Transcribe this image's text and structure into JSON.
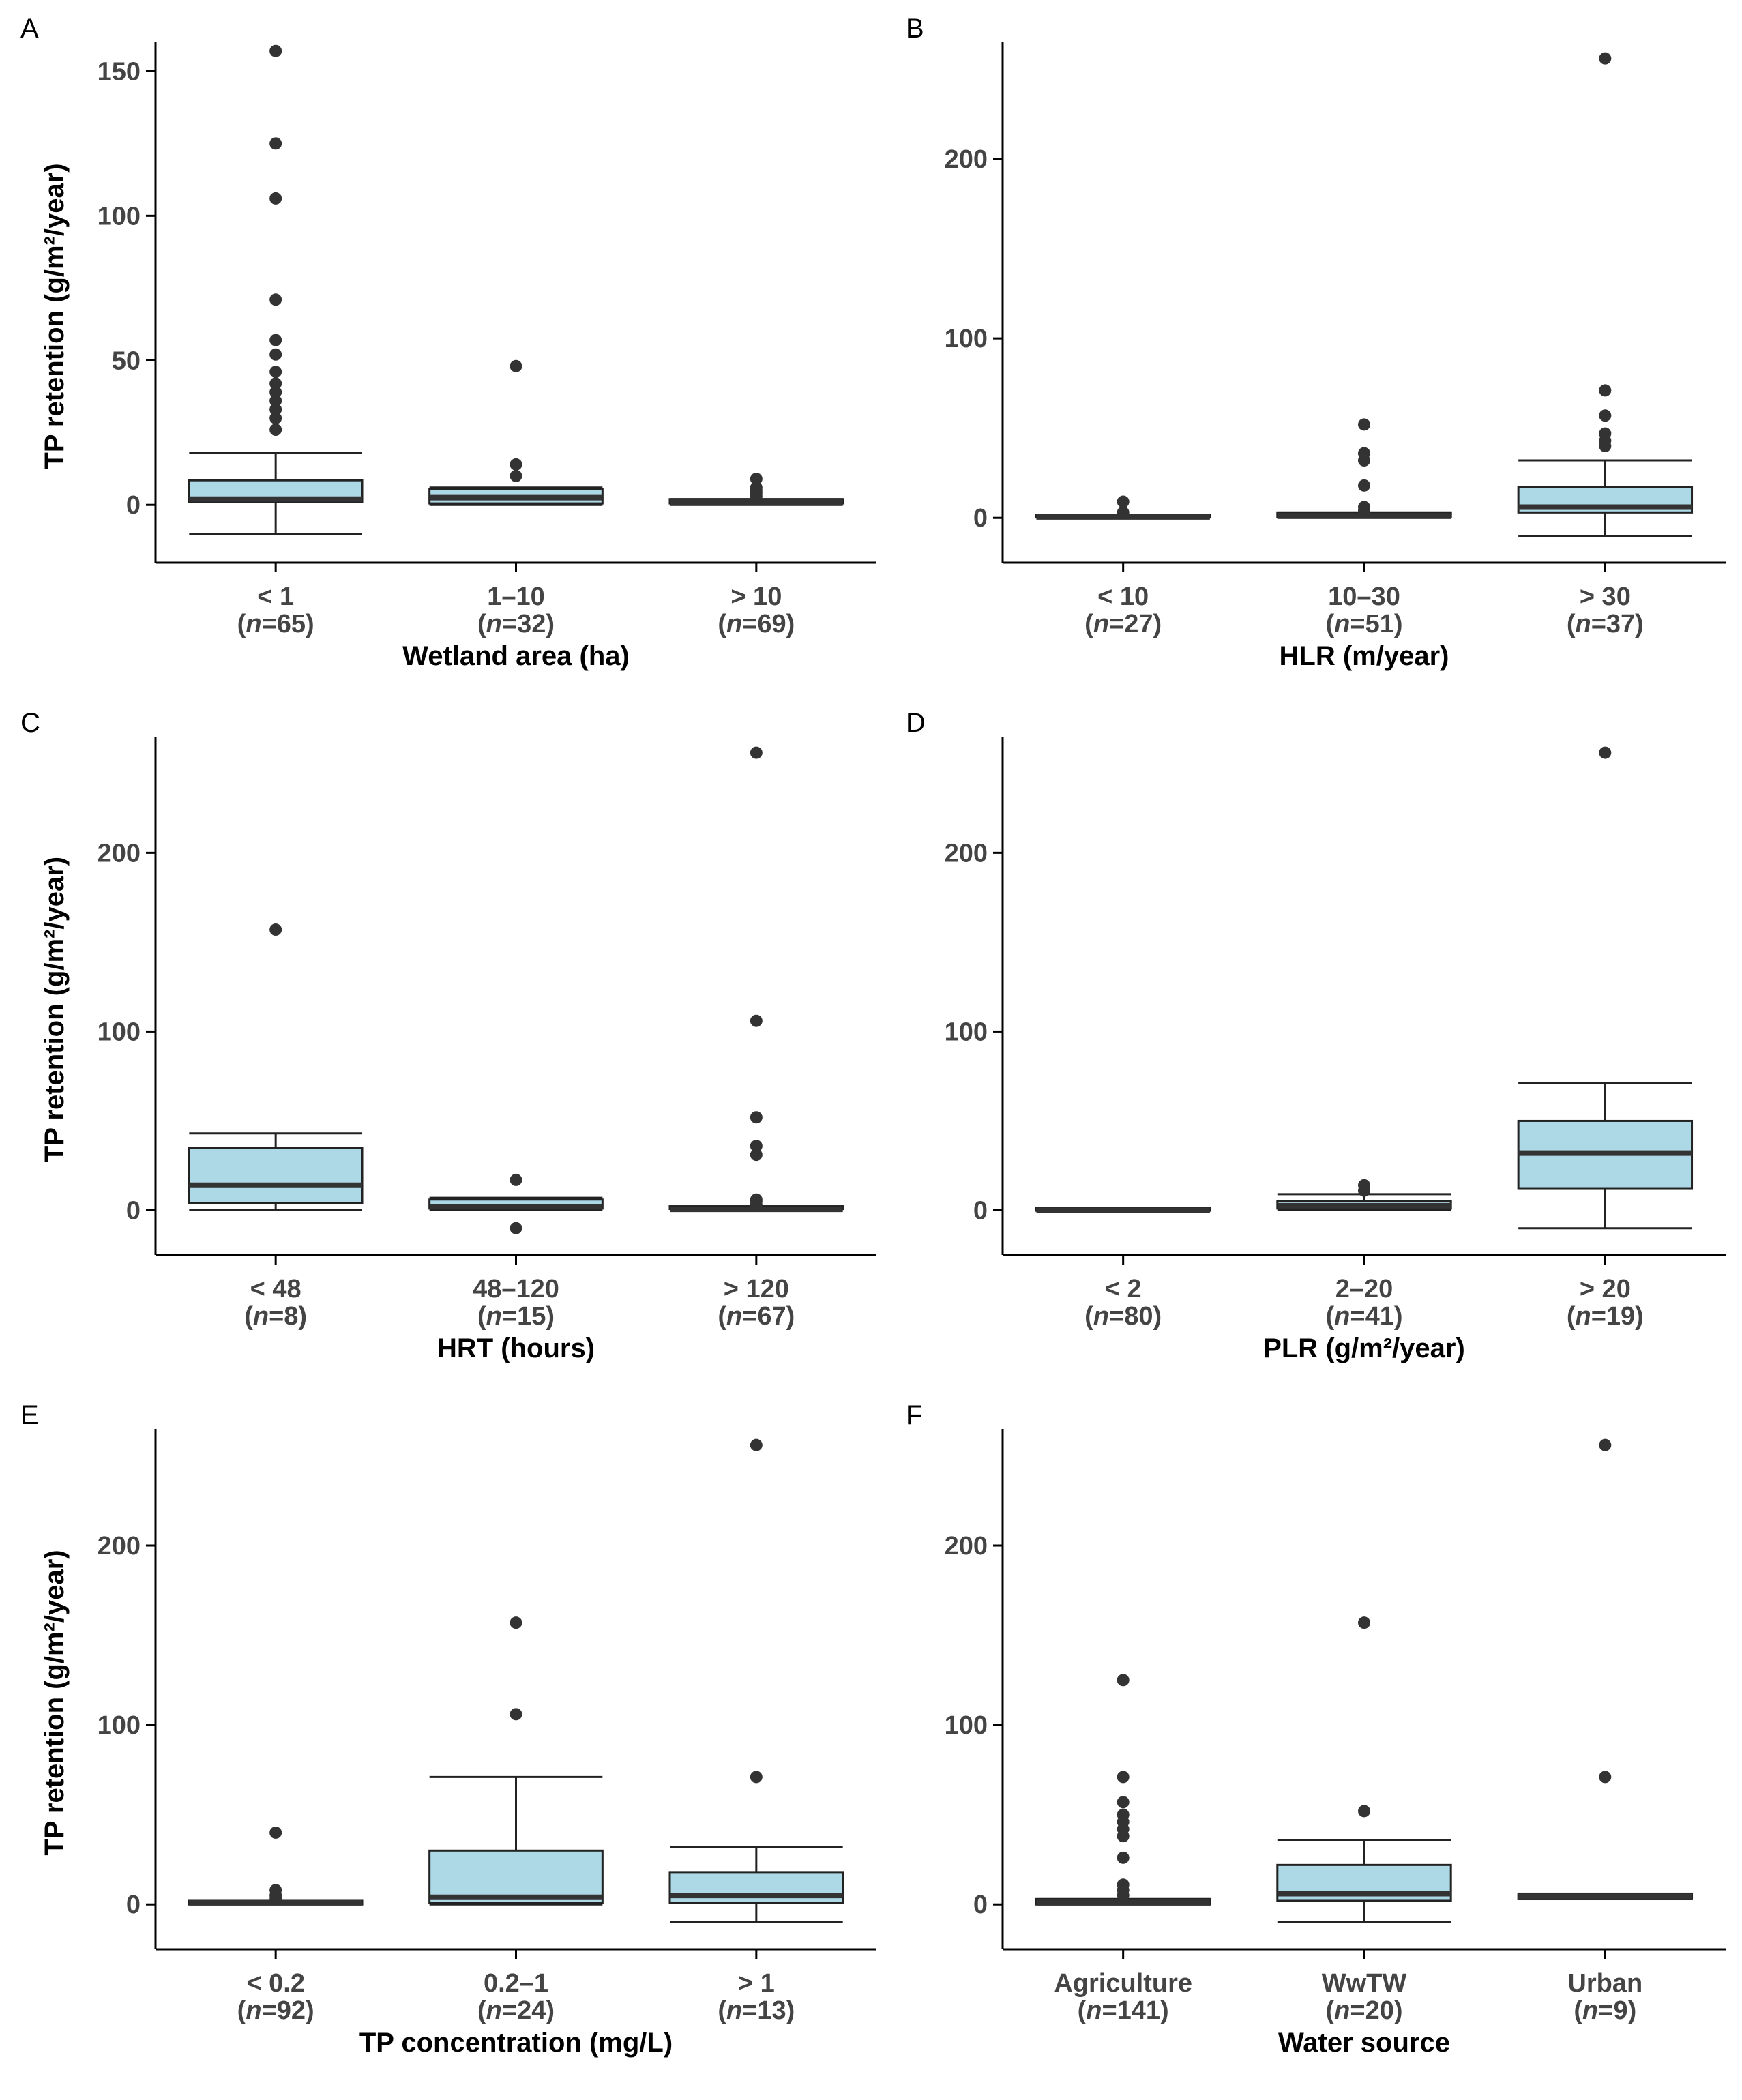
{
  "chart_data": [
    {
      "panel": "A",
      "type": "box",
      "ylabel": "TP retention (g/m²/year)",
      "xlabel": "Wetland area (ha)",
      "ylim": [
        -20,
        160
      ],
      "yticks": [
        0,
        50,
        100,
        150
      ],
      "categories": [
        {
          "label": "< 1",
          "n": "65",
          "whisker_low": -10,
          "q1": 1,
          "median": 2,
          "q3": 8.5,
          "whisker_high": 18,
          "outliers": [
            26,
            30,
            33,
            36,
            39,
            42,
            46,
            52,
            57,
            71,
            106,
            125,
            157
          ]
        },
        {
          "label": "1–10",
          "n": "32",
          "whisker_low": 0,
          "q1": 0.5,
          "median": 2.5,
          "q3": 5.5,
          "whisker_high": 6,
          "outliers": [
            10,
            14,
            48
          ]
        },
        {
          "label": "> 10",
          "n": "69",
          "whisker_low": 0,
          "q1": 0.5,
          "median": 1,
          "q3": 2,
          "whisker_high": 2,
          "outliers": [
            3,
            4,
            5,
            6,
            9
          ]
        }
      ]
    },
    {
      "panel": "B",
      "type": "box",
      "ylabel": "",
      "xlabel": "HLR (m/year)",
      "ylim": [
        -25,
        265
      ],
      "yticks": [
        0,
        100,
        200
      ],
      "categories": [
        {
          "label": "< 10",
          "n": "27",
          "whisker_low": 0,
          "q1": 0,
          "median": 0.5,
          "q3": 1,
          "whisker_high": 1,
          "outliers": [
            3,
            9
          ]
        },
        {
          "label": "10–30",
          "n": "51",
          "whisker_low": 0,
          "q1": 0.5,
          "median": 1,
          "q3": 3,
          "whisker_high": 3,
          "outliers": [
            4,
            6,
            18,
            32,
            36,
            52
          ]
        },
        {
          "label": "> 30",
          "n": "37",
          "whisker_low": -10,
          "q1": 3,
          "median": 6,
          "q3": 17,
          "whisker_high": 32,
          "outliers": [
            40,
            43,
            47,
            57,
            71,
            256
          ]
        }
      ]
    },
    {
      "panel": "C",
      "type": "box",
      "ylabel": "TP retention (g/m²/year)",
      "xlabel": "HRT (hours)",
      "ylim": [
        -25,
        265
      ],
      "yticks": [
        0,
        100,
        200
      ],
      "categories": [
        {
          "label": "< 48",
          "n": "8",
          "whisker_low": 0,
          "q1": 4,
          "median": 14,
          "q3": 35,
          "whisker_high": 43,
          "outliers": [
            157
          ]
        },
        {
          "label": "48–120",
          "n": "15",
          "whisker_low": 0,
          "q1": 1,
          "median": 2,
          "q3": 6,
          "whisker_high": 7,
          "outliers": [
            -10,
            17
          ]
        },
        {
          "label": "> 120",
          "n": "67",
          "whisker_low": 0,
          "q1": 0,
          "median": 0.5,
          "q3": 1.5,
          "whisker_high": 2,
          "outliers": [
            3,
            5,
            6,
            31,
            36,
            52,
            106,
            256
          ]
        }
      ]
    },
    {
      "panel": "D",
      "type": "box",
      "ylabel": "",
      "xlabel": "PLR (g/m²/year)",
      "ylim": [
        -25,
        265
      ],
      "yticks": [
        0,
        100,
        200
      ],
      "categories": [
        {
          "label": "< 2",
          "n": "80",
          "whisker_low": 0,
          "q1": 0,
          "median": 0,
          "q3": 0.5,
          "whisker_high": 0.5,
          "outliers": []
        },
        {
          "label": "2–20",
          "n": "41",
          "whisker_low": 0,
          "q1": 1,
          "median": 2.5,
          "q3": 5,
          "whisker_high": 9,
          "outliers": [
            11,
            14
          ]
        },
        {
          "label": "> 20",
          "n": "19",
          "whisker_low": -10,
          "q1": 12,
          "median": 32,
          "q3": 50,
          "whisker_high": 71,
          "outliers": [
            256
          ]
        }
      ]
    },
    {
      "panel": "E",
      "type": "box",
      "ylabel": "TP retention (g/m²/year)",
      "xlabel": "TP concentration (mg/L)",
      "ylim": [
        -25,
        265
      ],
      "yticks": [
        0,
        100,
        200
      ],
      "categories": [
        {
          "label": "< 0.2",
          "n": "92",
          "whisker_low": 0,
          "q1": 0,
          "median": 1,
          "q3": 2,
          "whisker_high": 2,
          "outliers": [
            3,
            5,
            8,
            40
          ]
        },
        {
          "label": "0.2–1",
          "n": "24",
          "whisker_low": 0,
          "q1": 1,
          "median": 4,
          "q3": 30,
          "whisker_high": 71,
          "outliers": [
            106,
            157
          ]
        },
        {
          "label": "> 1",
          "n": "13",
          "whisker_low": -10,
          "q1": 1,
          "median": 5,
          "q3": 18,
          "whisker_high": 32,
          "outliers": [
            71,
            256
          ]
        }
      ]
    },
    {
      "panel": "F",
      "type": "box",
      "ylabel": "",
      "xlabel": "Water source",
      "ylim": [
        -25,
        265
      ],
      "yticks": [
        0,
        100,
        200
      ],
      "categories": [
        {
          "label": "Agriculture",
          "n": "141",
          "whisker_low": 0,
          "q1": 0,
          "median": 1,
          "q3": 3,
          "whisker_high": 3,
          "outliers": [
            5,
            8,
            11,
            26,
            38,
            42,
            46,
            50,
            57,
            71,
            125
          ]
        },
        {
          "label": "WwTW",
          "n": "20",
          "whisker_low": -10,
          "q1": 2,
          "median": 6,
          "q3": 22,
          "whisker_high": 36,
          "outliers": [
            52,
            157
          ]
        },
        {
          "label": "Urban",
          "n": "9",
          "whisker_low": 3,
          "q1": 3,
          "median": 4.5,
          "q3": 6,
          "whisker_high": 6,
          "outliers": [
            71,
            256
          ]
        }
      ]
    }
  ]
}
